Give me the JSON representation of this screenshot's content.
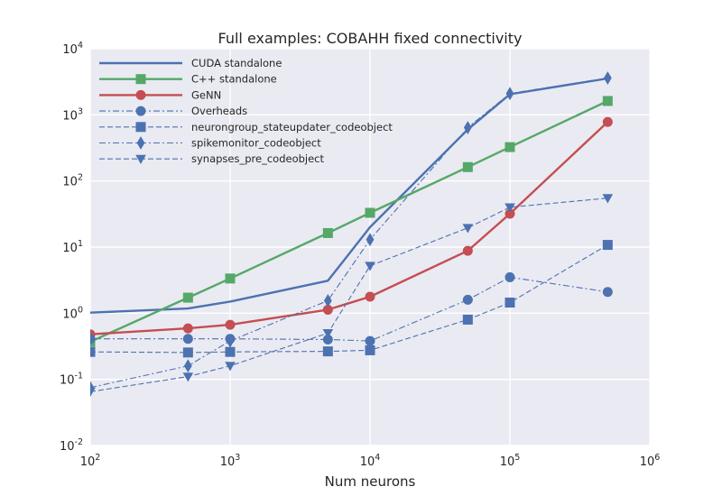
{
  "chart_data": {
    "type": "line",
    "title": "Full examples: COBAHH fixed connectivity",
    "xlabel": "Num neurons",
    "ylabel": "",
    "xscale": "log",
    "yscale": "log",
    "xlim": [
      100,
      1000000
    ],
    "ylim": [
      0.01,
      10000
    ],
    "xticks": [
      {
        "value": 100,
        "base": "10",
        "exp": "2"
      },
      {
        "value": 1000,
        "base": "10",
        "exp": "3"
      },
      {
        "value": 10000,
        "base": "10",
        "exp": "4"
      },
      {
        "value": 100000,
        "base": "10",
        "exp": "5"
      },
      {
        "value": 1000000,
        "base": "10",
        "exp": "6"
      }
    ],
    "yticks": [
      {
        "value": 0.01,
        "base": "10",
        "exp": "-2"
      },
      {
        "value": 0.1,
        "base": "10",
        "exp": "-1"
      },
      {
        "value": 1,
        "base": "10",
        "exp": "0"
      },
      {
        "value": 10,
        "base": "10",
        "exp": "1"
      },
      {
        "value": 100,
        "base": "10",
        "exp": "2"
      },
      {
        "value": 1000,
        "base": "10",
        "exp": "3"
      },
      {
        "value": 10000,
        "base": "10",
        "exp": "4"
      }
    ],
    "grid": true,
    "legend_position": "top-left",
    "series": [
      {
        "name": "CUDA standalone",
        "color": "#4c72b0",
        "line": "solid",
        "marker": "none",
        "x": [
          100,
          500,
          1000,
          5000,
          10000,
          50000,
          100000,
          500000
        ],
        "y": [
          1.02,
          1.18,
          1.5,
          3.1,
          20,
          600,
          2050,
          3550
        ]
      },
      {
        "name": "C++ standalone",
        "color": "#55a868",
        "line": "solid",
        "marker": "square",
        "x": [
          100,
          500,
          1000,
          5000,
          10000,
          50000,
          100000,
          500000
        ],
        "y": [
          0.37,
          1.72,
          3.35,
          16.3,
          33,
          162,
          325,
          1620
        ]
      },
      {
        "name": "GeNN",
        "color": "#c44e52",
        "line": "solid",
        "marker": "circle",
        "x": [
          100,
          500,
          1000,
          5000,
          10000,
          50000,
          100000,
          500000
        ],
        "y": [
          0.48,
          0.59,
          0.67,
          1.13,
          1.78,
          8.8,
          32,
          780
        ]
      },
      {
        "name": "Overheads",
        "color": "#4c72b0",
        "line": "dashdot",
        "marker": "circle",
        "x": [
          100,
          500,
          1000,
          5000,
          10000,
          50000,
          100000,
          500000
        ],
        "y": [
          0.41,
          0.41,
          0.41,
          0.4,
          0.38,
          1.6,
          3.5,
          2.1
        ]
      },
      {
        "name": "neurongroup_stateupdater_codeobject",
        "color": "#4c72b0",
        "line": "dashed",
        "marker": "square",
        "x": [
          100,
          500,
          1000,
          5000,
          10000,
          50000,
          100000,
          500000
        ],
        "y": [
          0.26,
          0.255,
          0.26,
          0.265,
          0.275,
          0.8,
          1.45,
          10.8
        ]
      },
      {
        "name": "spikemonitor_codeobject",
        "color": "#4c72b0",
        "line": "dashdot",
        "marker": "diamond",
        "x": [
          100,
          500,
          1000,
          5000,
          10000,
          50000,
          100000,
          500000
        ],
        "y": [
          0.075,
          0.16,
          0.38,
          1.55,
          13,
          640,
          2100,
          3600
        ]
      },
      {
        "name": "synapses_pre_codeobject",
        "color": "#4c72b0",
        "line": "dashed",
        "marker": "triangle-down",
        "x": [
          100,
          500,
          1000,
          5000,
          10000,
          50000,
          100000,
          500000
        ],
        "y": [
          0.065,
          0.11,
          0.16,
          0.5,
          5.2,
          19.5,
          40,
          55
        ]
      }
    ]
  },
  "colors": {
    "plot_background": "#eaeaf2",
    "grid": "#ffffff",
    "text": "#262626"
  }
}
